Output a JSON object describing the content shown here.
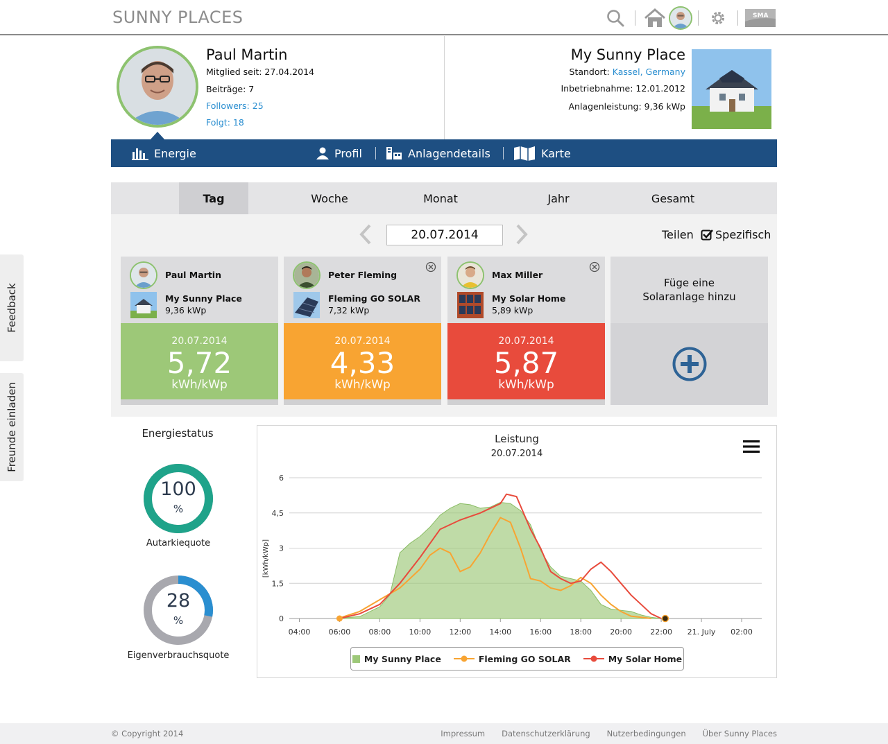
{
  "header": {
    "logo": "SUNNY PLACES",
    "icons": [
      "search-icon",
      "home-icon",
      "avatar",
      "gear-icon",
      "sma-logo"
    ],
    "brand_mark": "SMA"
  },
  "profile": {
    "name": "Paul Martin",
    "member_since": "Mitglied seit: 27.04.2014",
    "posts": "Beiträge: 7",
    "followers": "Followers: 25",
    "follows": "Folgt: 18"
  },
  "plant": {
    "title": "My Sunny Place",
    "location_label": "Standort:",
    "location_value": "Kassel, Germany",
    "commissioning": "Inbetriebnahme: 12.01.2012",
    "power": "Anlagenleistung: 9,36 kWp"
  },
  "nav": {
    "energy": "Energie",
    "profile": "Profil",
    "plant_details": "Anlagendetails",
    "map": "Karte"
  },
  "period_tabs": [
    "Tag",
    "Woche",
    "Monat",
    "Jahr",
    "Gesamt"
  ],
  "date_picker": {
    "value": "20.07.2014",
    "share": "Teilen",
    "specific": "Spezifisch"
  },
  "cards": [
    {
      "owner": "Paul Martin",
      "plant": "My Sunny Place",
      "kwp": "9,36 kWp",
      "date": "20.07.2014",
      "value": "5,72",
      "unit": "kWh/kWp",
      "color": "#9dc878",
      "closable": false
    },
    {
      "owner": "Peter Fleming",
      "plant": "Fleming GO SOLAR",
      "kwp": "7,32 kWp",
      "date": "20.07.2014",
      "value": "4,33",
      "unit": "kWh/kWp",
      "color": "#f8a432",
      "closable": true
    },
    {
      "owner": "Max Miller",
      "plant": "My Solar Home",
      "kwp": "5,89 kWp",
      "date": "20.07.2014",
      "value": "5,87",
      "unit": "kWh/kWp",
      "color": "#e84b3c",
      "closable": true
    }
  ],
  "add_card": {
    "title_line1": "Füge eine",
    "title_line2": "Solaranlage hinzu"
  },
  "energy_status": {
    "title": "Energiestatus",
    "autarky": {
      "value": "100",
      "pct": "%",
      "label": "Autarkiequote",
      "fraction": 1.0,
      "color": "#1fa38a"
    },
    "self_consumption": {
      "value": "28",
      "pct": "%",
      "label": "Eigenverbrauchsquote",
      "fraction": 0.28,
      "color": "#2a8ed0"
    }
  },
  "chart_data": {
    "type": "line",
    "title": "Leistung",
    "subtitle": "20.07.2014",
    "ylabel": "[kWh/kWp]",
    "ylim": [
      0,
      6
    ],
    "y_ticks": [
      "0",
      "1,5",
      "3",
      "4,5",
      "6"
    ],
    "y_tick_values": [
      0,
      1.5,
      3,
      4.5,
      6
    ],
    "x_ticks": [
      "04:00",
      "06:00",
      "08:00",
      "10:00",
      "12:00",
      "14:00",
      "16:00",
      "18:00",
      "20:00",
      "22:00",
      "21. July",
      "02:00"
    ],
    "x_tick_hours": [
      4,
      6,
      8,
      10,
      12,
      14,
      16,
      18,
      20,
      22,
      24,
      26
    ],
    "xlim": [
      3.5,
      27
    ],
    "grid": true,
    "legend_position": "bottom",
    "series": [
      {
        "name": "My Sunny Place",
        "type": "area",
        "color": "#9dc878",
        "x": [
          6.0,
          7.0,
          8.0,
          8.5,
          9.0,
          9.5,
          10.0,
          10.5,
          11.0,
          11.5,
          12.0,
          12.5,
          13.0,
          13.5,
          14.0,
          14.5,
          15.0,
          15.5,
          16.0,
          16.5,
          17.0,
          17.5,
          18.0,
          18.5,
          19.0,
          19.5,
          20.0,
          20.5,
          21.0,
          21.5,
          22.0
        ],
        "y": [
          0.02,
          0.08,
          0.5,
          1.0,
          2.8,
          3.2,
          3.5,
          3.9,
          4.4,
          4.7,
          4.9,
          4.85,
          4.7,
          4.75,
          4.95,
          4.9,
          4.6,
          4.0,
          2.9,
          2.2,
          1.8,
          1.7,
          1.6,
          1.2,
          0.6,
          0.4,
          0.35,
          0.3,
          0.15,
          0.05,
          0.0
        ]
      },
      {
        "name": "Fleming GO SOLAR",
        "type": "line",
        "color": "#f8a432",
        "x": [
          6.0,
          7.0,
          8.0,
          9.0,
          10.0,
          10.5,
          11.0,
          11.5,
          12.0,
          12.5,
          13.0,
          13.5,
          14.0,
          14.5,
          15.0,
          15.5,
          16.0,
          16.5,
          17.0,
          17.5,
          18.0,
          18.5,
          19.0,
          19.5,
          20.0,
          20.5,
          21.0,
          21.5
        ],
        "y": [
          0.02,
          0.3,
          0.8,
          1.3,
          2.1,
          2.7,
          3.0,
          2.8,
          2.0,
          2.2,
          2.8,
          3.6,
          4.3,
          4.1,
          3.0,
          1.7,
          1.6,
          1.3,
          1.2,
          1.4,
          1.75,
          1.5,
          1.0,
          0.6,
          0.3,
          0.1,
          0.05,
          0.0
        ]
      },
      {
        "name": "My Solar Home",
        "type": "line",
        "color": "#e84b3c",
        "x": [
          6.0,
          7.0,
          8.0,
          9.0,
          10.0,
          11.0,
          12.0,
          13.0,
          14.0,
          14.3,
          14.8,
          15.5,
          16.0,
          16.5,
          17.0,
          17.5,
          18.0,
          18.5,
          19.0,
          19.5,
          20.0,
          20.5,
          21.0,
          21.5,
          22.0
        ],
        "y": [
          0.0,
          0.2,
          0.6,
          1.5,
          2.6,
          3.8,
          4.2,
          4.5,
          4.9,
          5.3,
          5.2,
          3.8,
          3.0,
          2.0,
          1.7,
          1.5,
          1.6,
          2.1,
          2.4,
          2.0,
          1.5,
          1.0,
          0.6,
          0.2,
          0.0
        ]
      }
    ]
  },
  "side_tabs": {
    "feedback": "Feedback",
    "invite": "Freunde einladen"
  },
  "footer": {
    "copyright": "© Copyright 2014",
    "links": [
      "Impressum",
      "Datenschutzerklärung",
      "Nutzerbedingungen",
      "Über Sunny Places"
    ]
  }
}
